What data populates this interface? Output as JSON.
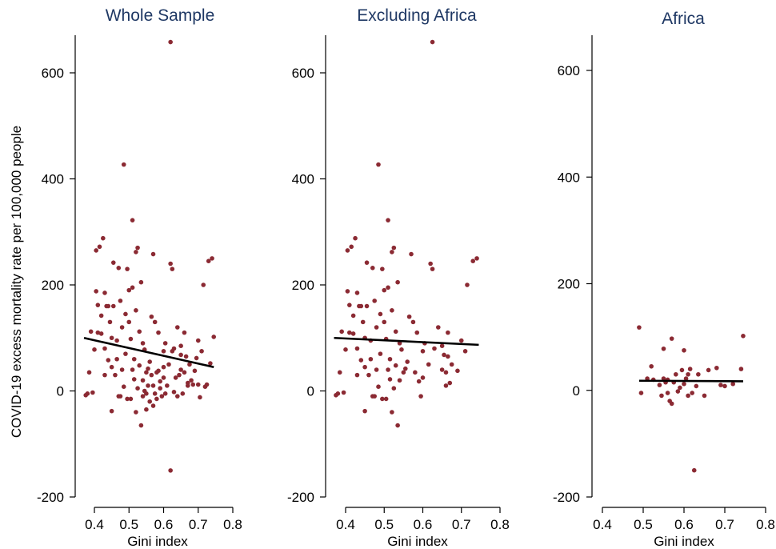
{
  "figure": {
    "ylabel": "COVID-19 excess mortality rate per 100,000 people",
    "marker_color": "#8b2a33",
    "fit_color": "#000000",
    "title_color": "#1f3864"
  },
  "chart_data": [
    {
      "type": "scatter",
      "title": "Whole Sample",
      "xlabel": "Gini index",
      "xlim": [
        0.4,
        0.8
      ],
      "xticks": [
        0.4,
        0.5,
        0.6,
        0.7,
        0.8
      ],
      "xtick_labels": [
        "0.4",
        "0.5",
        "0.6",
        "0.7",
        "0.8"
      ],
      "ylim": [
        -200,
        600
      ],
      "yticks": [
        -200,
        0,
        200,
        400,
        600
      ],
      "ytick_labels": [
        "-200",
        "0",
        "200",
        "400",
        "600"
      ],
      "fit_line": {
        "x": [
          0.37,
          0.745
        ],
        "y": [
          100,
          45
        ]
      },
      "points": [
        [
          0.375,
          -8
        ],
        [
          0.38,
          -5
        ],
        [
          0.385,
          35
        ],
        [
          0.39,
          112
        ],
        [
          0.395,
          -3
        ],
        [
          0.4,
          78
        ],
        [
          0.405,
          265
        ],
        [
          0.405,
          188
        ],
        [
          0.41,
          110
        ],
        [
          0.41,
          162
        ],
        [
          0.415,
          272
        ],
        [
          0.42,
          108
        ],
        [
          0.42,
          142
        ],
        [
          0.425,
          288
        ],
        [
          0.43,
          30
        ],
        [
          0.43,
          80
        ],
        [
          0.43,
          185
        ],
        [
          0.435,
          160
        ],
        [
          0.44,
          58
        ],
        [
          0.44,
          160
        ],
        [
          0.445,
          130
        ],
        [
          0.45,
          100
        ],
        [
          0.45,
          45
        ],
        [
          0.45,
          -38
        ],
        [
          0.455,
          242
        ],
        [
          0.455,
          160
        ],
        [
          0.46,
          30
        ],
        [
          0.465,
          95
        ],
        [
          0.465,
          60
        ],
        [
          0.47,
          -10
        ],
        [
          0.47,
          232
        ],
        [
          0.475,
          -10
        ],
        [
          0.475,
          170
        ],
        [
          0.48,
          40
        ],
        [
          0.48,
          120
        ],
        [
          0.485,
          8
        ],
        [
          0.485,
          427
        ],
        [
          0.49,
          70
        ],
        [
          0.49,
          145
        ],
        [
          0.495,
          -15
        ],
        [
          0.495,
          230
        ],
        [
          0.5,
          190
        ],
        [
          0.5,
          130
        ],
        [
          0.505,
          -15
        ],
        [
          0.505,
          98
        ],
        [
          0.51,
          40
        ],
        [
          0.51,
          322
        ],
        [
          0.51,
          195
        ],
        [
          0.515,
          22
        ],
        [
          0.515,
          60
        ],
        [
          0.52,
          -40
        ],
        [
          0.52,
          262
        ],
        [
          0.52,
          152
        ],
        [
          0.525,
          5
        ],
        [
          0.525,
          270
        ],
        [
          0.53,
          48
        ],
        [
          0.53,
          112
        ],
        [
          0.535,
          -65
        ],
        [
          0.535,
          205
        ],
        [
          0.54,
          -10
        ],
        [
          0.54,
          90
        ],
        [
          0.54,
          20
        ],
        [
          0.545,
          0
        ],
        [
          0.545,
          78
        ],
        [
          0.55,
          -35
        ],
        [
          0.55,
          -5
        ],
        [
          0.55,
          35
        ],
        [
          0.555,
          10
        ],
        [
          0.555,
          42
        ],
        [
          0.56,
          55
        ],
        [
          0.56,
          -20
        ],
        [
          0.565,
          30
        ],
        [
          0.565,
          140
        ],
        [
          0.57,
          -28
        ],
        [
          0.57,
          10
        ],
        [
          0.57,
          258
        ],
        [
          0.575,
          -5
        ],
        [
          0.575,
          130
        ],
        [
          0.58,
          35
        ],
        [
          0.58,
          -15
        ],
        [
          0.585,
          110
        ],
        [
          0.585,
          38
        ],
        [
          0.59,
          5
        ],
        [
          0.59,
          18
        ],
        [
          0.595,
          -10
        ],
        [
          0.6,
          25
        ],
        [
          0.6,
          75
        ],
        [
          0.6,
          45
        ],
        [
          0.605,
          -5
        ],
        [
          0.605,
          90
        ],
        [
          0.61,
          10
        ],
        [
          0.615,
          50
        ],
        [
          0.62,
          240
        ],
        [
          0.62,
          -150
        ],
        [
          0.62,
          658
        ],
        [
          0.625,
          230
        ],
        [
          0.625,
          75
        ],
        [
          0.63,
          -2
        ],
        [
          0.63,
          80
        ],
        [
          0.635,
          25
        ],
        [
          0.64,
          120
        ],
        [
          0.64,
          -10
        ],
        [
          0.645,
          30
        ],
        [
          0.65,
          40
        ],
        [
          0.65,
          85
        ],
        [
          0.65,
          68
        ],
        [
          0.655,
          -5
        ],
        [
          0.66,
          35
        ],
        [
          0.66,
          110
        ],
        [
          0.665,
          65
        ],
        [
          0.67,
          15
        ],
        [
          0.67,
          10
        ],
        [
          0.675,
          50
        ],
        [
          0.68,
          20
        ],
        [
          0.685,
          12
        ],
        [
          0.69,
          38
        ],
        [
          0.695,
          62
        ],
        [
          0.7,
          95
        ],
        [
          0.7,
          12
        ],
        [
          0.705,
          -12
        ],
        [
          0.71,
          75
        ],
        [
          0.715,
          200
        ],
        [
          0.72,
          8
        ],
        [
          0.725,
          12
        ],
        [
          0.73,
          245
        ],
        [
          0.735,
          52
        ],
        [
          0.74,
          250
        ],
        [
          0.745,
          102
        ]
      ]
    },
    {
      "type": "scatter",
      "title": "Excluding Africa",
      "xlabel": "Gini index",
      "xlim": [
        0.4,
        0.8
      ],
      "xticks": [
        0.4,
        0.5,
        0.6,
        0.7,
        0.8
      ],
      "xtick_labels": [
        "0.4",
        "0.5",
        "0.6",
        "0.7",
        "0.8"
      ],
      "ylim": [
        -200,
        600
      ],
      "yticks": [
        -200,
        0,
        200,
        400,
        600
      ],
      "ytick_labels": [
        "-200",
        "0",
        "200",
        "400",
        "600"
      ],
      "fit_line": {
        "x": [
          0.37,
          0.745
        ],
        "y": [
          100,
          87
        ]
      },
      "points": [
        [
          0.375,
          -8
        ],
        [
          0.38,
          -5
        ],
        [
          0.385,
          35
        ],
        [
          0.39,
          112
        ],
        [
          0.395,
          -3
        ],
        [
          0.4,
          78
        ],
        [
          0.405,
          265
        ],
        [
          0.405,
          188
        ],
        [
          0.41,
          110
        ],
        [
          0.41,
          162
        ],
        [
          0.415,
          272
        ],
        [
          0.42,
          108
        ],
        [
          0.42,
          142
        ],
        [
          0.425,
          288
        ],
        [
          0.43,
          30
        ],
        [
          0.43,
          80
        ],
        [
          0.43,
          185
        ],
        [
          0.435,
          160
        ],
        [
          0.44,
          58
        ],
        [
          0.44,
          160
        ],
        [
          0.445,
          130
        ],
        [
          0.45,
          100
        ],
        [
          0.45,
          45
        ],
        [
          0.45,
          -38
        ],
        [
          0.455,
          242
        ],
        [
          0.455,
          160
        ],
        [
          0.46,
          30
        ],
        [
          0.465,
          95
        ],
        [
          0.465,
          60
        ],
        [
          0.47,
          -10
        ],
        [
          0.47,
          232
        ],
        [
          0.475,
          -10
        ],
        [
          0.475,
          170
        ],
        [
          0.48,
          40
        ],
        [
          0.48,
          120
        ],
        [
          0.485,
          8
        ],
        [
          0.485,
          427
        ],
        [
          0.49,
          70
        ],
        [
          0.49,
          145
        ],
        [
          0.495,
          -15
        ],
        [
          0.495,
          230
        ],
        [
          0.5,
          190
        ],
        [
          0.5,
          130
        ],
        [
          0.505,
          -15
        ],
        [
          0.505,
          98
        ],
        [
          0.51,
          40
        ],
        [
          0.51,
          322
        ],
        [
          0.51,
          195
        ],
        [
          0.515,
          22
        ],
        [
          0.515,
          60
        ],
        [
          0.52,
          -40
        ],
        [
          0.52,
          262
        ],
        [
          0.52,
          152
        ],
        [
          0.525,
          5
        ],
        [
          0.525,
          270
        ],
        [
          0.53,
          48
        ],
        [
          0.53,
          112
        ],
        [
          0.535,
          -65
        ],
        [
          0.535,
          205
        ],
        [
          0.54,
          90
        ],
        [
          0.54,
          20
        ],
        [
          0.545,
          78
        ],
        [
          0.55,
          35
        ],
        [
          0.555,
          42
        ],
        [
          0.56,
          55
        ],
        [
          0.565,
          140
        ],
        [
          0.57,
          258
        ],
        [
          0.575,
          130
        ],
        [
          0.58,
          35
        ],
        [
          0.585,
          110
        ],
        [
          0.59,
          18
        ],
        [
          0.595,
          -10
        ],
        [
          0.6,
          25
        ],
        [
          0.6,
          75
        ],
        [
          0.605,
          90
        ],
        [
          0.615,
          50
        ],
        [
          0.62,
          240
        ],
        [
          0.625,
          658
        ],
        [
          0.625,
          230
        ],
        [
          0.63,
          80
        ],
        [
          0.64,
          120
        ],
        [
          0.65,
          40
        ],
        [
          0.65,
          85
        ],
        [
          0.655,
          68
        ],
        [
          0.66,
          10
        ],
        [
          0.66,
          35
        ],
        [
          0.665,
          110
        ],
        [
          0.665,
          65
        ],
        [
          0.67,
          15
        ],
        [
          0.675,
          50
        ],
        [
          0.69,
          38
        ],
        [
          0.7,
          95
        ],
        [
          0.71,
          75
        ],
        [
          0.715,
          200
        ],
        [
          0.73,
          245
        ],
        [
          0.74,
          250
        ]
      ]
    },
    {
      "type": "scatter",
      "title": "Africa",
      "xlabel": "Gini index",
      "xlim": [
        0.4,
        0.8
      ],
      "xticks": [
        0.4,
        0.5,
        0.6,
        0.7,
        0.8
      ],
      "xtick_labels": [
        "0.4",
        "0.5",
        "0.6",
        "0.7",
        "0.8"
      ],
      "ylim": [
        -200,
        600
      ],
      "yticks": [
        -200,
        0,
        200,
        400,
        600
      ],
      "ytick_labels": [
        "-200",
        "0",
        "200",
        "400",
        "600"
      ],
      "fit_line": {
        "x": [
          0.49,
          0.745
        ],
        "y": [
          18,
          17
        ]
      },
      "points": [
        [
          0.49,
          118
        ],
        [
          0.495,
          -5
        ],
        [
          0.51,
          22
        ],
        [
          0.52,
          45
        ],
        [
          0.525,
          20
        ],
        [
          0.54,
          10
        ],
        [
          0.545,
          -10
        ],
        [
          0.55,
          78
        ],
        [
          0.55,
          22
        ],
        [
          0.555,
          15
        ],
        [
          0.56,
          -5
        ],
        [
          0.56,
          20
        ],
        [
          0.565,
          -20
        ],
        [
          0.57,
          97
        ],
        [
          0.57,
          -25
        ],
        [
          0.575,
          15
        ],
        [
          0.58,
          30
        ],
        [
          0.585,
          -2
        ],
        [
          0.59,
          5
        ],
        [
          0.595,
          38
        ],
        [
          0.6,
          75
        ],
        [
          0.6,
          12
        ],
        [
          0.605,
          22
        ],
        [
          0.61,
          30
        ],
        [
          0.61,
          -10
        ],
        [
          0.615,
          40
        ],
        [
          0.62,
          -5
        ],
        [
          0.625,
          -150
        ],
        [
          0.63,
          8
        ],
        [
          0.635,
          30
        ],
        [
          0.65,
          -10
        ],
        [
          0.66,
          38
        ],
        [
          0.68,
          42
        ],
        [
          0.69,
          10
        ],
        [
          0.7,
          8
        ],
        [
          0.72,
          12
        ],
        [
          0.74,
          40
        ],
        [
          0.745,
          102
        ]
      ]
    }
  ]
}
